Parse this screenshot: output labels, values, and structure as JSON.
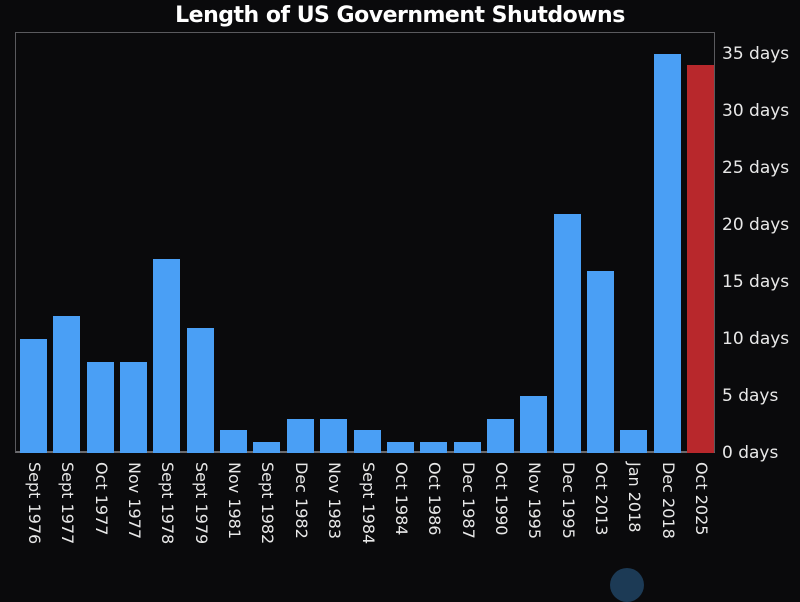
{
  "chart_data": {
    "type": "bar",
    "title": "Length of US Government Shutdowns",
    "xlabel": "",
    "ylabel": "",
    "ylim": [
      0,
      37
    ],
    "y_axis_position": "right",
    "y_ticks": [
      "0 days",
      "5 days",
      "10 days",
      "15 days",
      "20 days",
      "25 days",
      "30 days",
      "35 days"
    ],
    "grid": false,
    "legend": null,
    "categories": [
      "Sept 1976",
      "Sept 1977",
      "Oct 1977",
      "Nov 1977",
      "Sept 1978",
      "Sept 1979",
      "Nov 1981",
      "Sept 1982",
      "Dec 1982",
      "Nov 1983",
      "Sept 1984",
      "Oct 1984",
      "Oct 1986",
      "Dec 1987",
      "Oct 1990",
      "Nov 1995",
      "Dec 1995",
      "Oct 2013",
      "Jan 2018",
      "Dec 2018",
      "Oct 2025"
    ],
    "values": [
      10,
      12,
      8,
      8,
      17,
      11,
      2,
      1,
      3,
      3,
      2,
      1,
      1,
      1,
      3,
      5,
      21,
      16,
      2,
      35,
      34
    ],
    "colors": {
      "default": "#4a9ff5",
      "highlight": "#b8282c",
      "highlight_category": "Oct 2025"
    }
  }
}
